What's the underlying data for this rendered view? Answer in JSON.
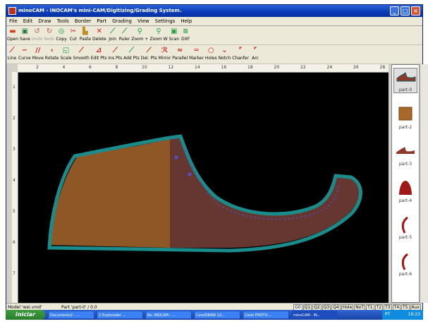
{
  "window": {
    "title": "minoCAM - INOCAM's mini-CAM/Digitizing/Grading System.",
    "controls": [
      "_",
      "□",
      "×"
    ]
  },
  "menu": [
    "File",
    "Edit",
    "Draw",
    "Tools",
    "Border",
    "Part",
    "Grading",
    "View",
    "Settings",
    "Help"
  ],
  "toolbar1": [
    {
      "label": "Open",
      "icon": "▬",
      "color": "#d04020",
      "enabled": true
    },
    {
      "label": "Save",
      "icon": "▣",
      "color": "#208040",
      "enabled": true
    },
    {
      "label": "Undo",
      "icon": "↺",
      "color": "#c08080",
      "enabled": false
    },
    {
      "label": "Redo",
      "icon": "↻",
      "color": "#c08080",
      "enabled": false
    },
    {
      "label": "Copy",
      "icon": "◎",
      "color": "#20a040",
      "enabled": true
    },
    {
      "label": "Cut",
      "icon": "✂",
      "color": "#c03030",
      "enabled": true
    },
    {
      "label": "Paste",
      "icon": "▙",
      "color": "#c09020",
      "enabled": true
    },
    {
      "label": "Delete",
      "icon": "✕",
      "color": "#d02020",
      "enabled": true
    },
    {
      "label": "Join",
      "icon": "⟋",
      "color": "#20a040",
      "enabled": true
    },
    {
      "label": "Ruler",
      "icon": "⟋",
      "color": "#20a040",
      "enabled": true
    },
    {
      "label": "Zoom +",
      "icon": "⚲",
      "color": "#20a040",
      "enabled": true
    },
    {
      "label": "Zoom W",
      "icon": "⚲",
      "color": "#20a040",
      "enabled": true
    },
    {
      "label": "Scan",
      "icon": "▣",
      "color": "#20a040",
      "enabled": true
    },
    {
      "label": "DXF",
      "icon": "≋",
      "color": "#20a040",
      "enabled": true
    }
  ],
  "toolbar2": [
    {
      "label": "Line",
      "icon": "⟋",
      "color": "#d02020"
    },
    {
      "label": "Curve",
      "icon": "∽",
      "color": "#d02020"
    },
    {
      "label": "Move",
      "icon": "//",
      "color": "#d02020"
    },
    {
      "label": "Rotate",
      "icon": "‹",
      "color": "#d02020"
    },
    {
      "label": "Scale",
      "icon": "◱",
      "color": "#20a040"
    },
    {
      "label": "Smooth",
      "icon": "⟋",
      "color": "#d02020"
    },
    {
      "label": "Edit Pts",
      "icon": "⊿",
      "color": "#d02020"
    },
    {
      "label": "Ins Pts",
      "icon": "⟋",
      "color": "#d02020"
    },
    {
      "label": "Add Pts",
      "icon": "⟋",
      "color": "#20a040"
    },
    {
      "label": "Del. Pts",
      "icon": "⟋",
      "color": "#d02020"
    },
    {
      "label": "Mirror",
      "icon": "ℛ",
      "color": "#d02020"
    },
    {
      "label": "Parallel",
      "icon": "≈",
      "color": "#d02020"
    },
    {
      "label": "Marker",
      "icon": "═",
      "color": "#d02020"
    },
    {
      "label": "Holes",
      "icon": "○",
      "color": "#d02020"
    },
    {
      "label": "Notch",
      "icon": "⌄",
      "color": "#d02020"
    },
    {
      "label": "Chanfer",
      "icon": "⌜",
      "color": "#d02020"
    },
    {
      "label": "Arc",
      "icon": "⌜",
      "color": "#d02020"
    }
  ],
  "ruler_h": [
    "2",
    "4",
    "6",
    "8",
    "10",
    "12",
    "14",
    "16",
    "18",
    "20",
    "22",
    "24",
    "26",
    "28"
  ],
  "ruler_v": [
    "1",
    "2",
    "3",
    "4",
    "5",
    "6",
    "7"
  ],
  "parts": [
    {
      "label": "part-0",
      "selected": true
    },
    {
      "label": "part-2",
      "selected": false
    },
    {
      "label": "part-3",
      "selected": false
    },
    {
      "label": "part-4",
      "selected": false
    },
    {
      "label": "part-5",
      "selected": false
    },
    {
      "label": "part-6",
      "selected": false
    }
  ],
  "status": {
    "model": "Model 'wei.vmd'",
    "part": "Part 'part-0' / 0.0"
  },
  "layer_tabs": [
    "G0",
    "Q1",
    "Q2",
    "Q3",
    "Q4",
    "Hole",
    "NoT",
    "T1",
    "T2",
    "T3",
    "T4",
    "T5",
    "Aux"
  ],
  "taskbar": {
    "start": "Iniciar",
    "tasks": [
      "Documento2 - ...",
      "2 Explorador ...",
      "Re: INOCAM - ...",
      "CorelDRAW 12...",
      "Corel PHOTO-...",
      "minoCAM - IN..."
    ],
    "lang": "PT",
    "clock": "19:23"
  },
  "colors": {
    "canvas": "#000000",
    "piece_outline": "#1a8c8c",
    "piece_fill_a": "#a0602a",
    "piece_fill_b": "#6b3a34"
  }
}
